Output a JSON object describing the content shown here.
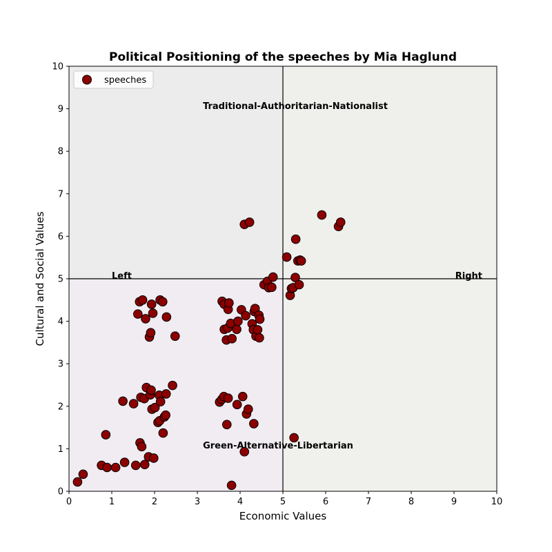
{
  "chart_data": {
    "type": "scatter",
    "title": "Political Positioning of the speeches by Mia Haglund",
    "xlabel": "Economic Values",
    "ylabel": "Cultural and Social Values",
    "xlim": [
      0,
      10
    ],
    "ylim": [
      0,
      10
    ],
    "xticks": [
      "0",
      "1",
      "2",
      "3",
      "4",
      "5",
      "6",
      "7",
      "8",
      "9",
      "10"
    ],
    "yticks": [
      "0",
      "1",
      "2",
      "3",
      "4",
      "5",
      "6",
      "7",
      "8",
      "9",
      "10"
    ],
    "grid": false,
    "legend_position": "top-left",
    "quadrant_colors": {
      "top_left": "#ececec",
      "top_right": "#eff0ec",
      "bottom_left": "#f0ecf2",
      "bottom_right": "#f0f1ec"
    },
    "quadrant_labels": {
      "top": "Traditional-Authoritarian-Nationalist",
      "bottom": "Green-Alternative-Libertarian",
      "left": "Left",
      "right": "Right"
    },
    "marker_color": "#8b0000",
    "marker_edge_color": "#000000",
    "series": [
      {
        "name": "speeches",
        "points": [
          [
            0.2,
            0.22
          ],
          [
            0.33,
            0.4
          ],
          [
            0.76,
            0.61
          ],
          [
            0.86,
            1.33
          ],
          [
            0.89,
            0.56
          ],
          [
            1.09,
            0.56
          ],
          [
            1.26,
            2.12
          ],
          [
            1.3,
            0.68
          ],
          [
            1.51,
            2.06
          ],
          [
            1.56,
            0.61
          ],
          [
            1.61,
            4.17
          ],
          [
            1.65,
            4.46
          ],
          [
            1.66,
            1.14
          ],
          [
            1.68,
            2.21
          ],
          [
            1.7,
            1.05
          ],
          [
            1.72,
            4.5
          ],
          [
            1.76,
            2.18
          ],
          [
            1.77,
            0.63
          ],
          [
            1.79,
            4.06
          ],
          [
            1.81,
            2.44
          ],
          [
            1.86,
            0.81
          ],
          [
            1.88,
            3.63
          ],
          [
            1.9,
            2.27
          ],
          [
            1.91,
            3.73
          ],
          [
            1.92,
            2.38
          ],
          [
            1.93,
            4.4
          ],
          [
            1.94,
            1.93
          ],
          [
            1.96,
            4.19
          ],
          [
            1.98,
            0.78
          ],
          [
            2.01,
            1.97
          ],
          [
            2.08,
            1.62
          ],
          [
            2.11,
            2.26
          ],
          [
            2.12,
            1.66
          ],
          [
            2.13,
            4.5
          ],
          [
            2.14,
            2.11
          ],
          [
            2.19,
            4.46
          ],
          [
            2.2,
            1.37
          ],
          [
            2.23,
            1.75
          ],
          [
            2.26,
            1.79
          ],
          [
            2.27,
            2.29
          ],
          [
            2.28,
            4.1
          ],
          [
            2.42,
            2.49
          ],
          [
            2.48,
            3.65
          ],
          [
            3.52,
            2.1
          ],
          [
            3.57,
            2.16
          ],
          [
            3.58,
            4.47
          ],
          [
            3.62,
            2.23
          ],
          [
            3.63,
            4.4
          ],
          [
            3.63,
            3.81
          ],
          [
            3.68,
            3.56
          ],
          [
            3.69,
            1.57
          ],
          [
            3.71,
            3.84
          ],
          [
            3.72,
            2.19
          ],
          [
            3.72,
            4.28
          ],
          [
            3.74,
            4.43
          ],
          [
            3.78,
            3.95
          ],
          [
            3.8,
            0.14
          ],
          [
            3.81,
            3.59
          ],
          [
            3.92,
            3.81
          ],
          [
            3.93,
            2.04
          ],
          [
            3.95,
            4.0
          ],
          [
            4.03,
            4.27
          ],
          [
            4.06,
            2.23
          ],
          [
            4.1,
            6.28
          ],
          [
            4.1,
            0.93
          ],
          [
            4.13,
            4.13
          ],
          [
            4.15,
            1.82
          ],
          [
            4.19,
            1.93
          ],
          [
            4.22,
            6.33
          ],
          [
            4.28,
            3.94
          ],
          [
            4.31,
            3.8
          ],
          [
            4.33,
            4.23
          ],
          [
            4.35,
            4.3
          ],
          [
            4.37,
            3.65
          ],
          [
            4.41,
            3.8
          ],
          [
            4.44,
            4.14
          ],
          [
            4.45,
            3.61
          ],
          [
            4.46,
            4.05
          ],
          [
            4.32,
            1.59
          ],
          [
            4.56,
            4.86
          ],
          [
            4.64,
            4.94
          ],
          [
            4.67,
            4.79
          ],
          [
            4.74,
            4.8
          ],
          [
            4.77,
            5.04
          ],
          [
            5.09,
            5.51
          ],
          [
            5.17,
            4.61
          ],
          [
            5.2,
            4.77
          ],
          [
            5.24,
            4.79
          ],
          [
            5.26,
            1.26
          ],
          [
            5.29,
            5.03
          ],
          [
            5.3,
            5.93
          ],
          [
            5.35,
            5.42
          ],
          [
            5.38,
            4.86
          ],
          [
            5.4,
            5.44
          ],
          [
            5.43,
            5.42
          ],
          [
            5.91,
            6.5
          ],
          [
            6.3,
            6.23
          ],
          [
            6.35,
            6.33
          ]
        ]
      }
    ]
  }
}
